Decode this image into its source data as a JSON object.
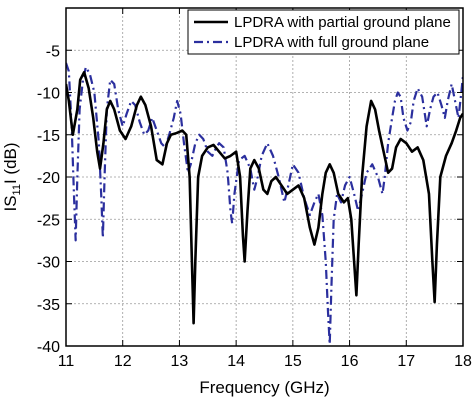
{
  "chart_data": {
    "type": "line",
    "title": "",
    "xlabel": "Frequency (GHz)",
    "ylabel": {
      "prefix": "IS",
      "subscript": "11",
      "suffix": "I (dB)"
    },
    "xlim": [
      11,
      18
    ],
    "ylim": [
      -40,
      0
    ],
    "x_ticks": [
      11,
      12,
      13,
      14,
      15,
      16,
      17,
      18
    ],
    "y_ticks": [
      0,
      -5,
      -10,
      -15,
      -20,
      -25,
      -30,
      -35,
      -40
    ],
    "x_tick_labels": [
      "11",
      "12",
      "13",
      "14",
      "15",
      "16",
      "17",
      "18"
    ],
    "y_tick_labels": [
      "",
      "-5",
      "-10",
      "-15",
      "-20",
      "-25",
      "-30",
      "-35",
      "-40"
    ],
    "grid": true,
    "legend_position": "top-right",
    "series": [
      {
        "name": "LPDRA with partial ground plane",
        "color": "#000000",
        "line_style": "solid",
        "points": [
          [
            11.0,
            -9.0
          ],
          [
            11.05,
            -11.0
          ],
          [
            11.12,
            -15.0
          ],
          [
            11.2,
            -12.0
          ],
          [
            11.25,
            -8.5
          ],
          [
            11.32,
            -7.6
          ],
          [
            11.4,
            -9.5
          ],
          [
            11.48,
            -13.0
          ],
          [
            11.55,
            -17.0
          ],
          [
            11.6,
            -19.0
          ],
          [
            11.66,
            -16.0
          ],
          [
            11.72,
            -12.0
          ],
          [
            11.78,
            -11.0
          ],
          [
            11.85,
            -12.0
          ],
          [
            11.95,
            -14.5
          ],
          [
            12.05,
            -15.5
          ],
          [
            12.15,
            -14.0
          ],
          [
            12.25,
            -11.5
          ],
          [
            12.32,
            -10.5
          ],
          [
            12.4,
            -11.5
          ],
          [
            12.5,
            -14.0
          ],
          [
            12.6,
            -18.0
          ],
          [
            12.7,
            -18.5
          ],
          [
            12.78,
            -16.0
          ],
          [
            12.85,
            -15.0
          ],
          [
            12.95,
            -14.8
          ],
          [
            13.05,
            -14.5
          ],
          [
            13.12,
            -15.0
          ],
          [
            13.18,
            -20.0
          ],
          [
            13.22,
            -30.0
          ],
          [
            13.25,
            -37.3
          ],
          [
            13.28,
            -30.0
          ],
          [
            13.33,
            -20.0
          ],
          [
            13.4,
            -17.5
          ],
          [
            13.5,
            -16.5
          ],
          [
            13.6,
            -16.2
          ],
          [
            13.7,
            -17.0
          ],
          [
            13.8,
            -17.8
          ],
          [
            13.9,
            -17.5
          ],
          [
            14.0,
            -17.0
          ],
          [
            14.07,
            -20.0
          ],
          [
            14.12,
            -27.0
          ],
          [
            14.15,
            -30.0
          ],
          [
            14.2,
            -24.0
          ],
          [
            14.25,
            -19.0
          ],
          [
            14.32,
            -18.0
          ],
          [
            14.4,
            -19.0
          ],
          [
            14.48,
            -21.5
          ],
          [
            14.55,
            -22.0
          ],
          [
            14.62,
            -20.5
          ],
          [
            14.7,
            -20.0
          ],
          [
            14.8,
            -21.0
          ],
          [
            14.9,
            -22.0
          ],
          [
            15.0,
            -21.5
          ],
          [
            15.1,
            -21.0
          ],
          [
            15.2,
            -22.5
          ],
          [
            15.3,
            -26.0
          ],
          [
            15.38,
            -28.0
          ],
          [
            15.45,
            -26.0
          ],
          [
            15.52,
            -22.0
          ],
          [
            15.58,
            -19.5
          ],
          [
            15.65,
            -18.5
          ],
          [
            15.72,
            -19.5
          ],
          [
            15.8,
            -22.0
          ],
          [
            15.9,
            -23.0
          ],
          [
            15.97,
            -22.5
          ],
          [
            16.03,
            -25.0
          ],
          [
            16.08,
            -30.0
          ],
          [
            16.12,
            -34.0
          ],
          [
            16.16,
            -28.0
          ],
          [
            16.22,
            -20.0
          ],
          [
            16.3,
            -14.0
          ],
          [
            16.38,
            -11.0
          ],
          [
            16.45,
            -12.0
          ],
          [
            16.52,
            -14.5
          ],
          [
            16.6,
            -17.0
          ],
          [
            16.68,
            -19.5
          ],
          [
            16.75,
            -19.0
          ],
          [
            16.82,
            -16.5
          ],
          [
            16.9,
            -15.5
          ],
          [
            17.0,
            -16.0
          ],
          [
            17.1,
            -17.0
          ],
          [
            17.2,
            -16.5
          ],
          [
            17.3,
            -18.0
          ],
          [
            17.4,
            -22.0
          ],
          [
            17.46,
            -30.0
          ],
          [
            17.5,
            -34.8
          ],
          [
            17.54,
            -28.0
          ],
          [
            17.6,
            -20.0
          ],
          [
            17.7,
            -17.5
          ],
          [
            17.8,
            -16.0
          ],
          [
            17.88,
            -14.5
          ],
          [
            17.95,
            -13.0
          ],
          [
            18.0,
            -12.5
          ]
        ]
      },
      {
        "name": "LPDRA with full ground plane",
        "color": "#2b2f9e",
        "line_style": "dashdot",
        "points": [
          [
            11.0,
            -6.5
          ],
          [
            11.05,
            -7.5
          ],
          [
            11.1,
            -14.0
          ],
          [
            11.14,
            -22.0
          ],
          [
            11.17,
            -27.5
          ],
          [
            11.2,
            -20.0
          ],
          [
            11.24,
            -12.0
          ],
          [
            11.3,
            -8.5
          ],
          [
            11.35,
            -7.0
          ],
          [
            11.42,
            -7.8
          ],
          [
            11.5,
            -10.0
          ],
          [
            11.58,
            -16.0
          ],
          [
            11.62,
            -22.0
          ],
          [
            11.65,
            -27.2
          ],
          [
            11.68,
            -20.0
          ],
          [
            11.72,
            -12.0
          ],
          [
            11.78,
            -8.5
          ],
          [
            11.85,
            -9.0
          ],
          [
            11.92,
            -12.0
          ],
          [
            12.0,
            -14.0
          ],
          [
            12.07,
            -12.5
          ],
          [
            12.15,
            -11.0
          ],
          [
            12.22,
            -11.5
          ],
          [
            12.3,
            -13.5
          ],
          [
            12.38,
            -15.0
          ],
          [
            12.45,
            -14.5
          ],
          [
            12.52,
            -13.0
          ],
          [
            12.6,
            -14.5
          ],
          [
            12.68,
            -16.0
          ],
          [
            12.75,
            -16.5
          ],
          [
            12.82,
            -15.0
          ],
          [
            12.9,
            -13.0
          ],
          [
            12.96,
            -11.0
          ],
          [
            13.02,
            -12.5
          ],
          [
            13.08,
            -16.0
          ],
          [
            13.15,
            -19.5
          ],
          [
            13.2,
            -18.5
          ],
          [
            13.28,
            -16.0
          ],
          [
            13.35,
            -15.0
          ],
          [
            13.42,
            -15.5
          ],
          [
            13.5,
            -17.0
          ],
          [
            13.58,
            -17.5
          ],
          [
            13.65,
            -16.5
          ],
          [
            13.7,
            -16.0
          ],
          [
            13.78,
            -16.5
          ],
          [
            13.85,
            -19.5
          ],
          [
            13.9,
            -24.0
          ],
          [
            13.93,
            -25.5
          ],
          [
            13.97,
            -22.0
          ],
          [
            14.05,
            -18.0
          ],
          [
            14.15,
            -17.5
          ],
          [
            14.25,
            -19.0
          ],
          [
            14.32,
            -21.5
          ],
          [
            14.38,
            -20.0
          ],
          [
            14.45,
            -17.5
          ],
          [
            14.55,
            -16.0
          ],
          [
            14.65,
            -17.5
          ],
          [
            14.75,
            -20.0
          ],
          [
            14.85,
            -23.0
          ],
          [
            14.92,
            -21.0
          ],
          [
            15.0,
            -18.5
          ],
          [
            15.1,
            -19.5
          ],
          [
            15.2,
            -22.5
          ],
          [
            15.3,
            -24.5
          ],
          [
            15.38,
            -23.0
          ],
          [
            15.45,
            -22.0
          ],
          [
            15.52,
            -24.5
          ],
          [
            15.58,
            -30.0
          ],
          [
            15.62,
            -36.0
          ],
          [
            15.65,
            -39.8
          ],
          [
            15.68,
            -33.0
          ],
          [
            15.72,
            -25.0
          ],
          [
            15.78,
            -22.0
          ],
          [
            15.85,
            -23.0
          ],
          [
            15.92,
            -21.0
          ],
          [
            16.0,
            -20.0
          ],
          [
            16.08,
            -22.0
          ],
          [
            16.15,
            -24.0
          ],
          [
            16.22,
            -22.0
          ],
          [
            16.3,
            -19.5
          ],
          [
            16.4,
            -18.5
          ],
          [
            16.5,
            -20.0
          ],
          [
            16.58,
            -22.0
          ],
          [
            16.62,
            -20.0
          ],
          [
            16.68,
            -16.0
          ],
          [
            16.75,
            -13.0
          ],
          [
            16.8,
            -11.0
          ],
          [
            16.85,
            -10.0
          ],
          [
            16.9,
            -10.5
          ],
          [
            16.95,
            -13.0
          ],
          [
            17.02,
            -14.5
          ],
          [
            17.08,
            -13.5
          ],
          [
            17.13,
            -11.0
          ],
          [
            17.2,
            -9.5
          ],
          [
            17.28,
            -10.5
          ],
          [
            17.36,
            -14.0
          ],
          [
            17.42,
            -12.0
          ],
          [
            17.48,
            -10.5
          ],
          [
            17.55,
            -10.0
          ],
          [
            17.62,
            -11.5
          ],
          [
            17.68,
            -13.0
          ],
          [
            17.73,
            -11.0
          ],
          [
            17.8,
            -9.0
          ],
          [
            17.86,
            -11.0
          ],
          [
            17.92,
            -13.0
          ],
          [
            17.97,
            -10.0
          ],
          [
            18.0,
            -8.0
          ]
        ]
      }
    ]
  }
}
